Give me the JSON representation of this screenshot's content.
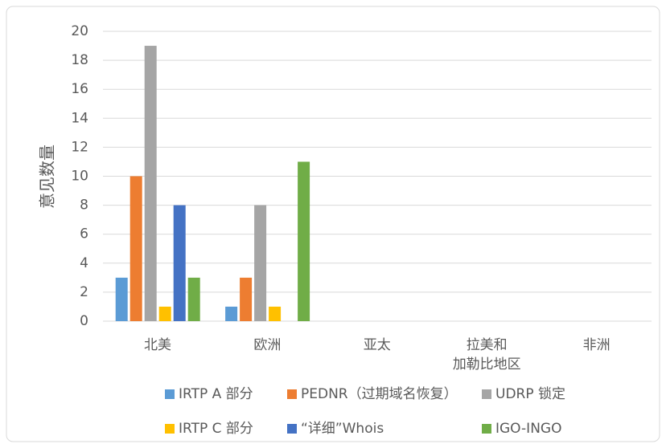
{
  "chart_data": {
    "type": "bar",
    "y_label": "意见数量",
    "categories": [
      "北美",
      "欧洲",
      "亚太",
      "拉美和\n加勒比地区",
      "非洲"
    ],
    "series": [
      {
        "name": "IRTP A 部分",
        "color": "#5b9bd5",
        "values": [
          3,
          1,
          0,
          0,
          0
        ]
      },
      {
        "name": "PEDNR（过期域名恢复）",
        "color": "#ed7d31",
        "values": [
          10,
          3,
          0,
          0,
          0
        ]
      },
      {
        "name": "UDRP 锁定",
        "color": "#a5a5a5",
        "values": [
          19,
          8,
          0,
          0,
          0
        ]
      },
      {
        "name": "IRTP C 部分",
        "color": "#ffc000",
        "values": [
          1,
          1,
          0,
          0,
          0
        ]
      },
      {
        "name": "“详细”Whois",
        "color": "#4472c4",
        "values": [
          8,
          0,
          0,
          0,
          0
        ]
      },
      {
        "name": "IGO-INGO",
        "color": "#70ad47",
        "values": [
          3,
          11,
          0,
          0,
          0
        ]
      }
    ],
    "ylim": [
      0,
      20
    ],
    "yticks": [
      0,
      2,
      4,
      6,
      8,
      10,
      12,
      14,
      16,
      18,
      20
    ],
    "grid": true,
    "legend": "bottom"
  }
}
